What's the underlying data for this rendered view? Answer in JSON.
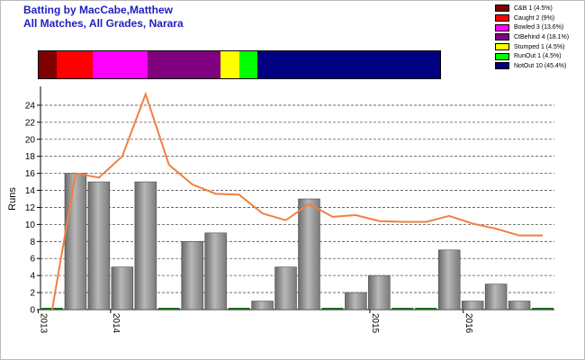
{
  "title_line1": "Batting by MacCabe,Matthew",
  "title_line2": "All Matches, All Grades, Narara",
  "legend": [
    {
      "label": "C&B 1 (4.5%)",
      "color": "#800000",
      "share": 4.5
    },
    {
      "label": "Caught 2 (9%)",
      "color": "#ff0000",
      "share": 9
    },
    {
      "label": "Bowled 3 (13.6%)",
      "color": "#ff00ff",
      "share": 13.6
    },
    {
      "label": "CtBehind 4 (18.1%)",
      "color": "#800080",
      "share": 18.1
    },
    {
      "label": "Stumped 1 (4.5%)",
      "color": "#ffff00",
      "share": 4.5
    },
    {
      "label": "RunOut 1 (4.5%)",
      "color": "#00ff00",
      "share": 4.5
    },
    {
      "label": "NotOut 10 (45.4%)",
      "color": "#000080",
      "share": 45.4
    }
  ],
  "chart_data": {
    "type": "bar",
    "ylabel": "Runs",
    "ylim": [
      0,
      26
    ],
    "yticks": [
      0,
      2,
      4,
      6,
      8,
      10,
      12,
      14,
      16,
      18,
      20,
      22,
      24
    ],
    "grid": "horizontal dashed",
    "x_tick_labels": [
      {
        "label": "2013",
        "at_bar": -0.6
      },
      {
        "label": "2014",
        "at_bar": 2.5
      },
      {
        "label": "2015",
        "at_bar": 13.6
      },
      {
        "label": "2016",
        "at_bar": 17.6
      }
    ],
    "series": [
      {
        "kind": "bar",
        "values": [
          0,
          16,
          15,
          5,
          15,
          0,
          8,
          9,
          0,
          1,
          5,
          13,
          0,
          2,
          4,
          0,
          0,
          7,
          1,
          3,
          1,
          0
        ],
        "color": "#9a9a9a"
      },
      {
        "kind": "line",
        "values": [
          0,
          16,
          15.5,
          18,
          25.3,
          17,
          14.7,
          13.6,
          13.5,
          11.3,
          10.5,
          12.4,
          10.9,
          11.1,
          10.4,
          10.3,
          10.3,
          11,
          10.1,
          9.5,
          8.7,
          8.7
        ],
        "color": "#f08040"
      }
    ]
  }
}
